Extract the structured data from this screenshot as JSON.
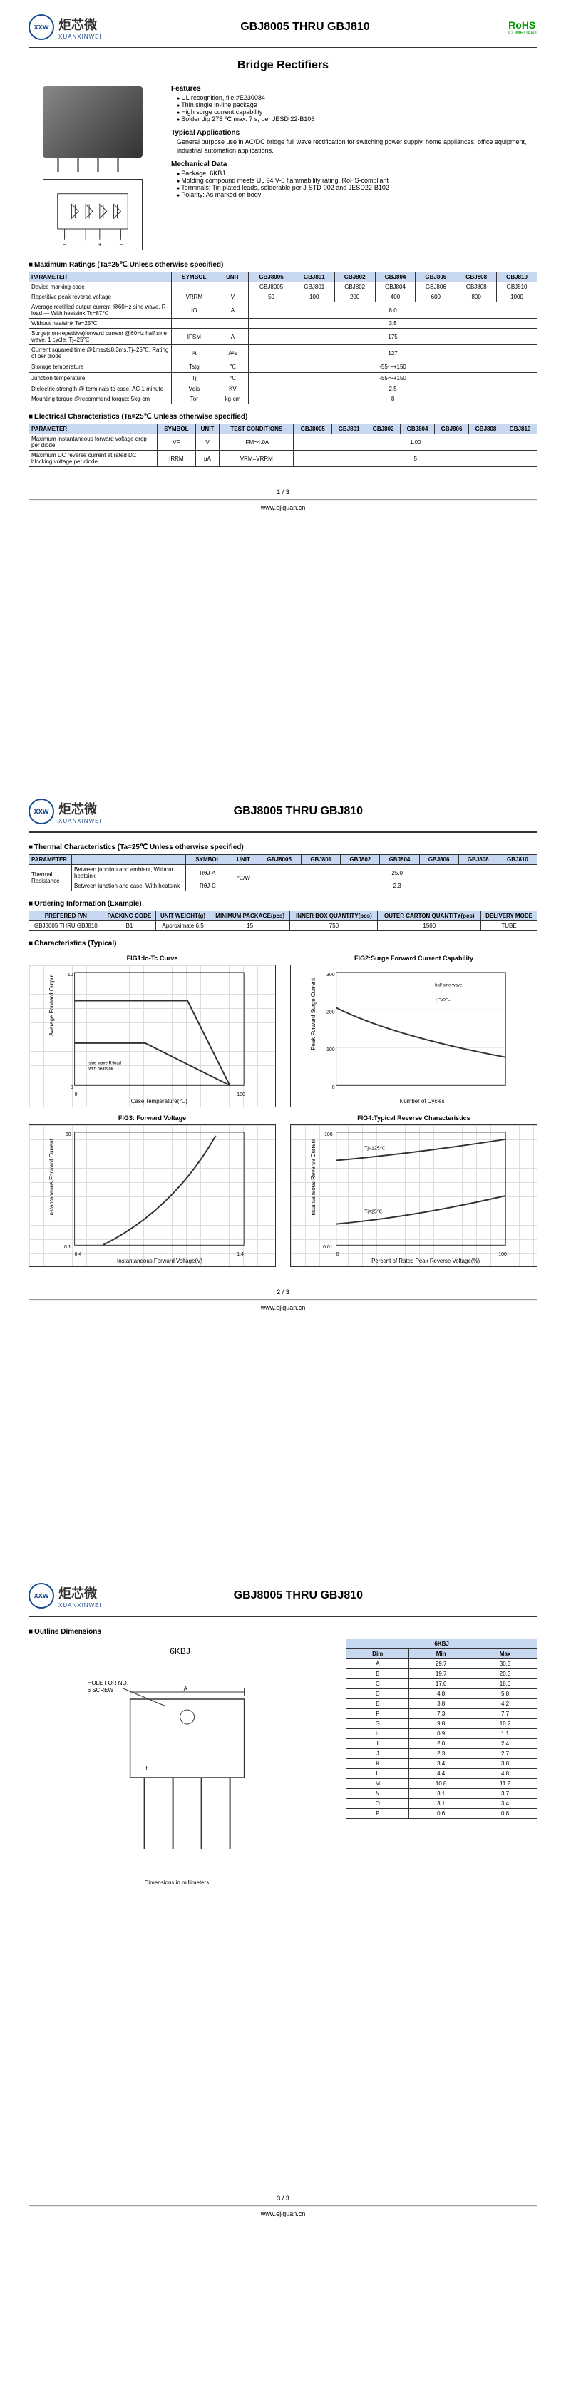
{
  "brand": {
    "logo_text": "xxw",
    "name_cn": "炬芯微",
    "name_en": "XUANXINWEI"
  },
  "doc_title": "GBJ8005 THRU GBJ810",
  "rohs": {
    "label": "RoHS",
    "sub": "COMPLIANT"
  },
  "main_heading": "Bridge Rectifiers",
  "features": {
    "title": "Features",
    "items": [
      "UL recognition, file #E230084",
      "Thin single in-line package",
      "High surge current capability",
      "Solder dip 275 ℃ max. 7 s, per JESD 22-B106"
    ]
  },
  "applications": {
    "title": "Typical Applications",
    "text": "General purpose use in AC/DC bridge full wave rectification for switching power supply, home appliances, office equipment, industrial automation applications."
  },
  "mechanical": {
    "title": "Mechanical Data",
    "items": [
      "Package: 6KBJ",
      "Molding compound meets UL 94 V-0 flammability rating, RoHS-compliant",
      "Terminals: Tin plated leads, solderable per J-STD-002 and JESD22-B102",
      "Polarity: As marked on body"
    ]
  },
  "max_ratings": {
    "title": "Maximum Ratings (Ta=25℃ Unless otherwise specified)",
    "headers": [
      "PARAMETER",
      "SYMBOL",
      "UNIT",
      "GBJ8005",
      "GBJ801",
      "GBJ802",
      "GBJ804",
      "GBJ806",
      "GBJ808",
      "GBJ810"
    ],
    "rows": [
      {
        "p": "Device marking code",
        "s": "",
        "u": "",
        "v": [
          "GBJ8005",
          "GBJ801",
          "GBJ802",
          "GBJ804",
          "GBJ806",
          "GBJ808",
          "GBJ810"
        ]
      },
      {
        "p": "Repetitive peak reverse voltage",
        "s": "VRRM",
        "u": "V",
        "v": [
          "50",
          "100",
          "200",
          "400",
          "600",
          "800",
          "1000"
        ]
      },
      {
        "p": "Average rectified output current @60Hz sine wave, R-load — With heatsink Tc=87℃",
        "s": "IO",
        "u": "A",
        "span": "8.0",
        "rowspan": 2
      },
      {
        "p": "Without heatsink Ta=25℃",
        "s": "",
        "u": "",
        "span": "3.5"
      },
      {
        "p": "Surge(non-repetitive)forward current @60Hz half sine wave, 1 cycle, Tj=25℃",
        "s": "IFSM",
        "u": "A",
        "span": "175"
      },
      {
        "p": "Current squared time @1ms≤t≤8.3ms,Tj=25℃, Rating of per diode",
        "s": "I²t",
        "u": "A²s",
        "span": "127"
      },
      {
        "p": "Storage temperature",
        "s": "Tstg",
        "u": "℃",
        "span": "-55～+150"
      },
      {
        "p": "Junction temperature",
        "s": "Tj",
        "u": "℃",
        "span": "-55～+150"
      },
      {
        "p": "Dielectric strength @ terminals to case, AC 1 minute",
        "s": "Vdis",
        "u": "KV",
        "span": "2.5"
      },
      {
        "p": "Mounting torque @recommend torque: 5kg-cm",
        "s": "Tor",
        "u": "kg-cm",
        "span": "8"
      }
    ]
  },
  "elec_char": {
    "title": "Electrical Characteristics (Ta=25℃ Unless otherwise specified)",
    "headers": [
      "PARAMETER",
      "SYMBOL",
      "UNIT",
      "TEST CONDITIONS",
      "GBJ8005",
      "GBJ801",
      "GBJ802",
      "GBJ804",
      "GBJ806",
      "GBJ808",
      "GBJ810"
    ],
    "rows": [
      {
        "p": "Maximum instantaneous forward voltage drop per diode",
        "s": "VF",
        "u": "V",
        "tc": "IFM=4.0A",
        "span": "1.00"
      },
      {
        "p": "Maximum DC reverse current at rated DC blocking voltage per diode",
        "s": "IRRM",
        "u": "μA",
        "tc": "VRM=VRRM",
        "span": "5"
      }
    ]
  },
  "thermal": {
    "title": "Thermal Characteristics (Ta=25℃ Unless otherwise specified)",
    "headers": [
      "PARAMETER",
      "",
      "SYMBOL",
      "UNIT",
      "GBJ8005",
      "GBJ801",
      "GBJ802",
      "GBJ804",
      "GBJ806",
      "GBJ808",
      "GBJ810"
    ],
    "label": "Thermal Resistance",
    "rows": [
      {
        "p": "Between junction and ambient, Without heatsink",
        "s": "RθJ-A",
        "u": "℃/W",
        "span": "25.0"
      },
      {
        "p": "Between junction and case, With heatsink",
        "s": "RθJ-C",
        "u": "",
        "span": "2.3"
      }
    ]
  },
  "ordering": {
    "title": "Ordering Information (Example)",
    "headers": [
      "PREFERED P/N",
      "PACKING CODE",
      "UNIT WEIGHT(g)",
      "MINIMUM PACKAGE(pcs)",
      "INNER BOX QUANTITY(pcs)",
      "OUTER CARTON QUANTITY(pcs)",
      "DELIVERY MODE"
    ],
    "row": [
      "GBJ8005 THRU GBJ810",
      "B1",
      "Approximate 6.5",
      "15",
      "750",
      "1500",
      "TUBE"
    ]
  },
  "char_typical_title": "Characteristics (Typical)",
  "figs": {
    "fig1": {
      "title": "FIG1:Io-Tc Curve",
      "ylabel": "Average Forward Output",
      "xlabel": "Case Temperature(℃)",
      "ylim": [
        0,
        10
      ],
      "xlim": [
        0,
        180
      ],
      "note1": "single phase half-wave 60Hz",
      "note2": "sine wave R-load with heatsink"
    },
    "fig2": {
      "title": "FIG2:Surge Forward Current Capability",
      "ylabel": "Peak Forward Surge Current",
      "xlabel": "Number of Cycles",
      "ylim": [
        0,
        300
      ],
      "xlim": [
        0,
        100
      ],
      "note": "8.3ms single half sine-wave (JEDEC method) Tj=25℃"
    },
    "fig3": {
      "title": "FIG3: Forward Voltage",
      "ylabel": "Instantaneous Forward Current",
      "xlabel": "Instantaneous Forward Voltage(V)",
      "ylim": [
        0.1,
        60
      ],
      "xlim": [
        0.4,
        1.4
      ],
      "yscale": "log"
    },
    "fig4": {
      "title": "FIG4:Typical Reverse Characteristics",
      "ylabel": "Instantaneous Reverse Current",
      "xlabel": "Percent of Rated Peak Reverse Voltage(%)",
      "ylim": [
        0.01,
        100
      ],
      "xlim": [
        0,
        100
      ],
      "yscale": "log",
      "labels": [
        "Tj=125℃",
        "Tj=25℃"
      ]
    }
  },
  "outline": {
    "title": "Outline Dimensions",
    "pkg": "6KBJ",
    "drawing_note": "HOLE FOR NO. 6 SCREW",
    "drawing_footer": "Dimensions in millimeters",
    "headers": [
      "Dim",
      "Min",
      "Max"
    ],
    "rows": [
      [
        "A",
        "29.7",
        "30.3"
      ],
      [
        "B",
        "19.7",
        "20.3"
      ],
      [
        "C",
        "17.0",
        "18.0"
      ],
      [
        "D",
        "4.8",
        "5.8"
      ],
      [
        "E",
        "3.8",
        "4.2"
      ],
      [
        "F",
        "7.3",
        "7.7"
      ],
      [
        "G",
        "9.8",
        "10.2"
      ],
      [
        "H",
        "0.9",
        "1.1"
      ],
      [
        "I",
        "2.0",
        "2.4"
      ],
      [
        "J",
        "2.3",
        "2.7"
      ],
      [
        "K",
        "3.4",
        "3.8"
      ],
      [
        "L",
        "4.4",
        "4.8"
      ],
      [
        "M",
        "10.8",
        "11.2"
      ],
      [
        "N",
        "3.1",
        "3.7"
      ],
      [
        "O",
        "3.1",
        "3.4"
      ],
      [
        "P",
        "0.6",
        "0.8"
      ]
    ]
  },
  "pages": {
    "p1": "1 / 3",
    "p2": "2 / 3",
    "p3": "3 / 3"
  },
  "website": "www.ejiguan.cn"
}
